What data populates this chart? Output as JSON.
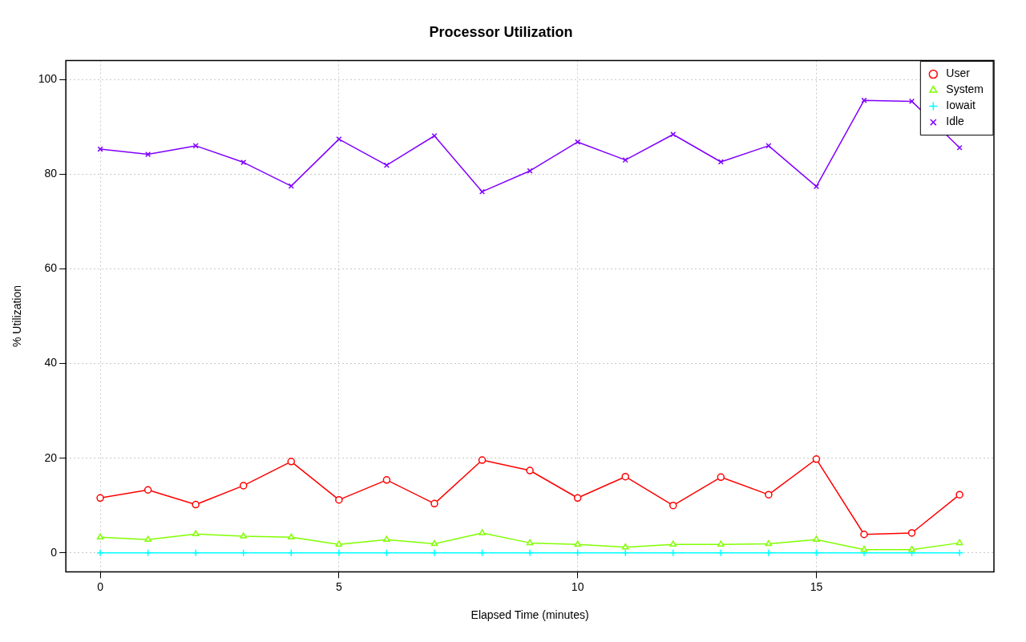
{
  "chart_data": {
    "type": "line",
    "title": "Processor Utilization",
    "xlabel": "Elapsed Time (minutes)",
    "ylabel": "% Utilization",
    "x": [
      0,
      1,
      2,
      3,
      4,
      5,
      6,
      7,
      8,
      9,
      10,
      11,
      12,
      13,
      14,
      15,
      16,
      17,
      18
    ],
    "series": [
      {
        "name": "User",
        "color": "#ff0000",
        "marker": "circle",
        "values": [
          11.6,
          13.3,
          10.2,
          14.2,
          19.3,
          11.2,
          15.4,
          10.4,
          19.6,
          17.4,
          11.6,
          16.1,
          10.0,
          16.0,
          12.3,
          19.8,
          3.9,
          4.2,
          12.3
        ]
      },
      {
        "name": "System",
        "color": "#80ff00",
        "marker": "triangle",
        "values": [
          3.3,
          2.8,
          4.0,
          3.5,
          3.3,
          1.8,
          2.8,
          1.9,
          4.2,
          2.1,
          1.8,
          1.2,
          1.8,
          1.8,
          1.9,
          2.8,
          0.7,
          0.7,
          2.1
        ]
      },
      {
        "name": "Iowait",
        "color": "#00ffff",
        "marker": "cross",
        "values": [
          0,
          0,
          0,
          0,
          0,
          0,
          0,
          0,
          0,
          0,
          0,
          0,
          0,
          0,
          0,
          0,
          0,
          0,
          0
        ]
      },
      {
        "name": "Idle",
        "color": "#8000ff",
        "marker": "x",
        "values": [
          85.3,
          84.2,
          86.0,
          82.5,
          77.5,
          87.4,
          81.9,
          88.1,
          76.3,
          80.7,
          86.8,
          83.0,
          88.4,
          82.6,
          86.0,
          77.4,
          95.6,
          95.4,
          85.6
        ]
      }
    ],
    "xlim": [
      -0.72,
      18.72
    ],
    "xticks": [
      0,
      5,
      10,
      15
    ],
    "ylim": [
      -4,
      104
    ],
    "yticks": [
      0,
      20,
      40,
      60,
      80,
      100
    ],
    "grid": true,
    "legend": "top right",
    "line_style": "solid"
  }
}
